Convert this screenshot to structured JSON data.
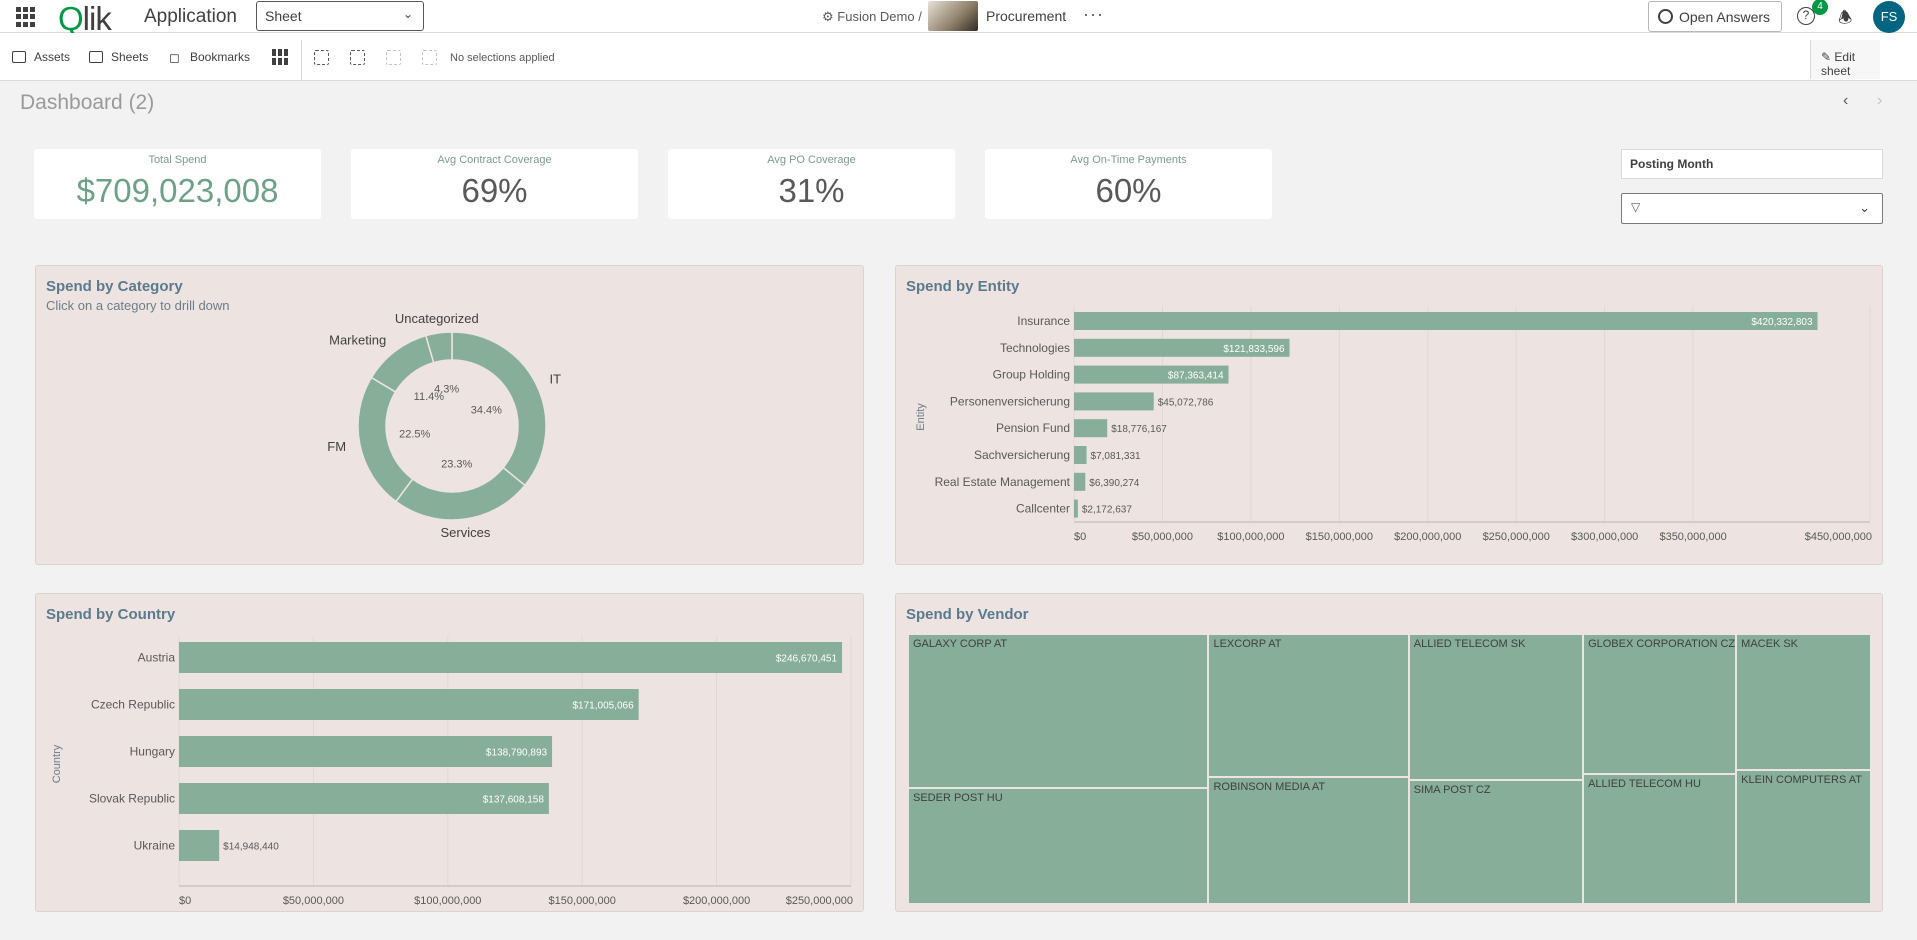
{
  "topbar": {
    "app_title": "Application",
    "sheet_dropdown": "Sheet",
    "space": "Fusion Demo",
    "separator": "/",
    "app_name": "Procurement",
    "more": "···",
    "open_answers": "Open Answers",
    "help_badge": "4",
    "help": "?",
    "avatar": "FS"
  },
  "toolbar": {
    "assets": "Assets",
    "sheets": "Sheets",
    "bookmarks": "Bookmarks",
    "selections": "No selections applied",
    "edit_sheet": "Edit sheet"
  },
  "dashboard": {
    "title": "Dashboard (2)",
    "prev": "‹",
    "next": "›"
  },
  "kpis": [
    {
      "label": "Total Spend",
      "value": "$709,023,008"
    },
    {
      "label": "Avg Contract Coverage",
      "value": "69%"
    },
    {
      "label": "Avg PO Coverage",
      "value": "31%"
    },
    {
      "label": "Avg On-Time Payments",
      "value": "60%"
    }
  ],
  "filter": {
    "title": "Posting Month",
    "icon": "filter-icon"
  },
  "colors": {
    "bar": "#86ae98",
    "panel_bg": "#ede4e1",
    "title": "#5b7a8e"
  },
  "chart_data": [
    {
      "type": "pie",
      "title": "Spend by Category",
      "subtitle": "Click on a category to drill down",
      "categories": [
        "IT",
        "Services",
        "FM",
        "Marketing",
        "Uncategorized"
      ],
      "values": [
        34.4,
        23.3,
        22.5,
        11.4,
        4.3
      ],
      "value_labels": [
        "34.4%",
        "23.3%",
        "22.5%",
        "11.4%",
        "4.3%"
      ]
    },
    {
      "type": "bar",
      "orientation": "horizontal",
      "title": "Spend by Entity",
      "ylabel": "Entity",
      "categories": [
        "Insurance",
        "Technologies",
        "Group Holding",
        "Personenversicherung",
        "Pension Fund",
        "Sachversicherung",
        "Real Estate Management",
        "Callcenter"
      ],
      "values": [
        420332803,
        121833596,
        87363414,
        45072786,
        18776167,
        7081331,
        6390274,
        2172637
      ],
      "value_labels": [
        "$420,332,803",
        "$121,833,596",
        "$87,363,414",
        "$45,072,786",
        "$18,776,167",
        "$7,081,331",
        "$6,390,274",
        "$2,172,637"
      ],
      "xlim": [
        0,
        450000000
      ],
      "xticks": [
        "$0",
        "$50,000,000",
        "$100,000,000",
        "$150,000,000",
        "$200,000,000",
        "$250,000,000",
        "$300,000,000",
        "$350,000,000",
        "$450,000,000"
      ],
      "xtick_values": [
        0,
        50000000,
        100000000,
        150000000,
        200000000,
        250000000,
        300000000,
        350000000,
        450000000
      ]
    },
    {
      "type": "bar",
      "orientation": "horizontal",
      "title": "Spend by Country",
      "ylabel": "Country",
      "categories": [
        "Austria",
        "Czech Republic",
        "Hungary",
        "Slovak Republic",
        "Ukraine"
      ],
      "values": [
        246670451,
        171005066,
        138790893,
        137608158,
        14948440
      ],
      "value_labels": [
        "$246,670,451",
        "$171,005,066",
        "$138,790,893",
        "$137,608,158",
        "$14,948,440"
      ],
      "xlim": [
        0,
        250000000
      ],
      "xticks": [
        "$0",
        "$50,000,000",
        "$100,000,000",
        "$150,000,000",
        "$200,000,000",
        "$250,000,000"
      ],
      "xtick_values": [
        0,
        50000000,
        100000000,
        150000000,
        200000000,
        250000000
      ]
    },
    {
      "type": "treemap",
      "title": "Spend by Vendor",
      "columns": [
        {
          "weight": 0.312,
          "tiles": [
            {
              "name": "GALAXY CORP AT",
              "weight": 0.57
            },
            {
              "name": "SEDER POST HU",
              "weight": 0.43
            }
          ]
        },
        {
          "weight": 0.208,
          "tiles": [
            {
              "name": "LEXCORP AT",
              "weight": 0.53
            },
            {
              "name": "ROBINSON MEDIA AT",
              "weight": 0.47
            }
          ]
        },
        {
          "weight": 0.181,
          "tiles": [
            {
              "name": "ALLIED TELECOM SK",
              "weight": 0.54
            },
            {
              "name": "SIMA POST CZ",
              "weight": 0.46
            }
          ]
        },
        {
          "weight": 0.159,
          "tiles": [
            {
              "name": "GLOBEX CORPORATION CZ",
              "weight": 0.52
            },
            {
              "name": "ALLIED TELECOM HU",
              "weight": 0.48
            }
          ]
        },
        {
          "weight": 0.14,
          "tiles": [
            {
              "name": "MACEK SK",
              "weight": 0.505
            },
            {
              "name": "KLEIN COMPUTERS AT",
              "weight": 0.495
            }
          ]
        }
      ]
    }
  ]
}
